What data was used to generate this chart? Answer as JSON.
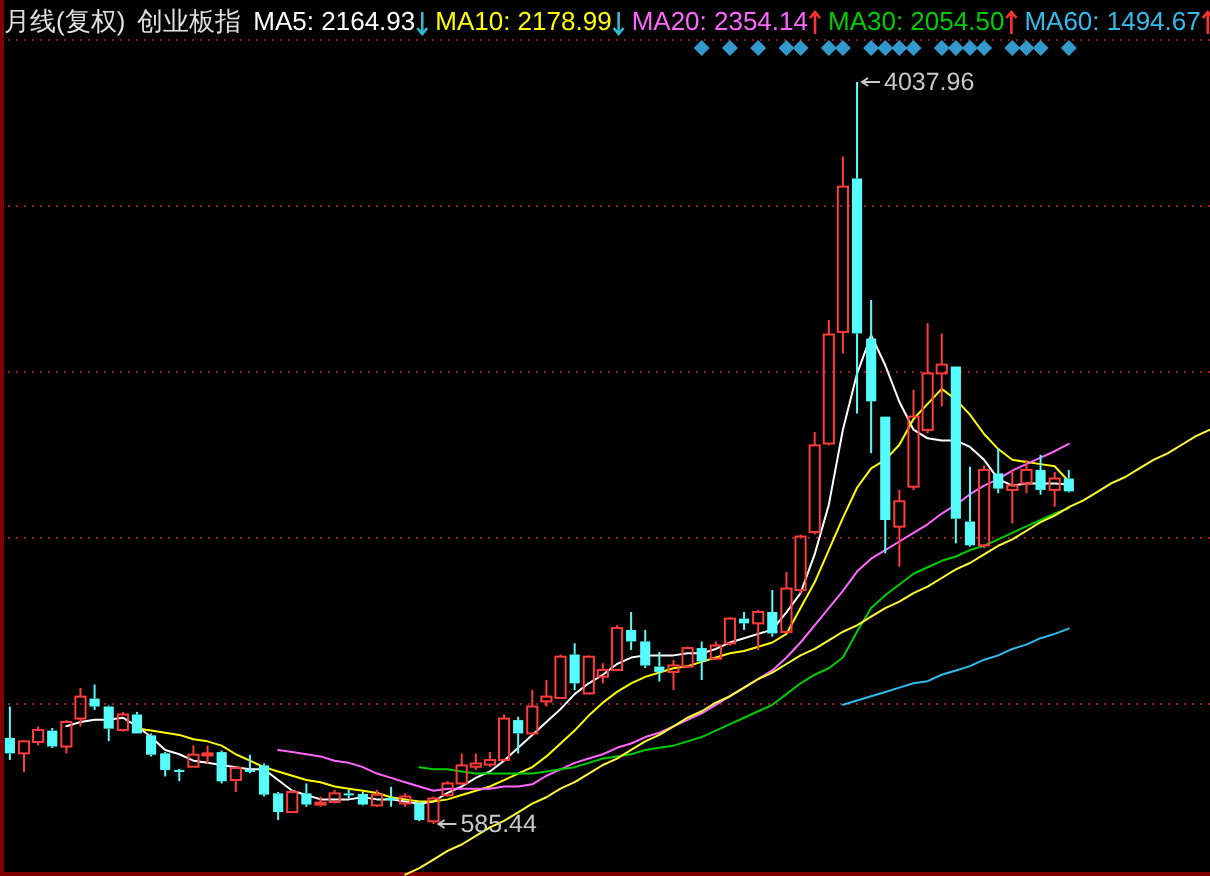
{
  "chart_data": {
    "type": "candlestick",
    "title": "月线(复权)",
    "subtitle": "创业板指",
    "categories": [
      null,
      null,
      null,
      null,
      null,
      null,
      null,
      null,
      null,
      null,
      null,
      null,
      null,
      null,
      null,
      null,
      null,
      null,
      null,
      null,
      null,
      null,
      null,
      null,
      null,
      null,
      null,
      null,
      null,
      null,
      null,
      null,
      null,
      null,
      null,
      null,
      null,
      null,
      null,
      null,
      null,
      null,
      null,
      null,
      null,
      null,
      null,
      null,
      null,
      null,
      null,
      null,
      null,
      null,
      null,
      null,
      null,
      null,
      null,
      null,
      null,
      null,
      null,
      null,
      null,
      null,
      null,
      null,
      null,
      null,
      null,
      null,
      null,
      null,
      null,
      null,
      null,
      null,
      null,
      null,
      null,
      null,
      null,
      null,
      null,
      null
    ],
    "ohlc": [
      [
        986,
        1132,
        883,
        914
      ],
      [
        914,
        970,
        827,
        970
      ],
      [
        967,
        1039,
        951,
        1023
      ],
      [
        1020,
        1032,
        939,
        946
      ],
      [
        946,
        1069,
        914,
        1060
      ],
      [
        1076,
        1218,
        1039,
        1178
      ],
      [
        1169,
        1234,
        1116,
        1132
      ],
      [
        1132,
        1137,
        970,
        1029
      ],
      [
        1023,
        1107,
        1016,
        1095
      ],
      [
        1095,
        1107,
        1007,
        1007
      ],
      [
        998,
        1007,
        899,
        908
      ],
      [
        914,
        920,
        806,
        837
      ],
      [
        837,
        843,
        784,
        830
      ],
      [
        852,
        951,
        852,
        908
      ],
      [
        908,
        951,
        867,
        914
      ],
      [
        920,
        927,
        774,
        784
      ],
      [
        790,
        852,
        734,
        846
      ],
      [
        837,
        908,
        821,
        830
      ],
      [
        858,
        867,
        713,
        722
      ],
      [
        728,
        734,
        604,
        641
      ],
      [
        641,
        744,
        641,
        734
      ],
      [
        728,
        774,
        666,
        676
      ],
      [
        676,
        713,
        666,
        685
      ],
      [
        688,
        744,
        681,
        728
      ],
      [
        728,
        744,
        704,
        719
      ],
      [
        725,
        734,
        672,
        676
      ],
      [
        672,
        744,
        666,
        722
      ],
      [
        706,
        759,
        666,
        700
      ],
      [
        681,
        728,
        666,
        713
      ],
      [
        681,
        691,
        598,
        604
      ],
      [
        598,
        713,
        585.44,
        704
      ],
      [
        719,
        784,
        713,
        774
      ],
      [
        774,
        914,
        769,
        858
      ],
      [
        852,
        914,
        837,
        867
      ],
      [
        862,
        920,
        852,
        883
      ],
      [
        883,
        1095,
        877,
        1076
      ],
      [
        1069,
        1085,
        914,
        1007
      ],
      [
        1007,
        1209,
        1001,
        1132
      ],
      [
        1156,
        1256,
        1132,
        1178
      ],
      [
        1172,
        1374,
        1169,
        1364
      ],
      [
        1374,
        1426,
        1209,
        1240
      ],
      [
        1193,
        1370,
        1188,
        1364
      ],
      [
        1271,
        1333,
        1240,
        1302
      ],
      [
        1302,
        1510,
        1296,
        1497
      ],
      [
        1488,
        1572,
        1395,
        1435
      ],
      [
        1435,
        1488,
        1311,
        1323
      ],
      [
        1318,
        1386,
        1249,
        1293
      ],
      [
        1293,
        1349,
        1209,
        1323
      ],
      [
        1318,
        1411,
        1311,
        1404
      ],
      [
        1404,
        1435,
        1256,
        1342
      ],
      [
        1355,
        1435,
        1349,
        1416
      ],
      [
        1426,
        1547,
        1416,
        1541
      ],
      [
        1541,
        1572,
        1488,
        1519
      ],
      [
        1519,
        1581,
        1395,
        1572
      ],
      [
        1572,
        1674,
        1457,
        1472
      ],
      [
        1479,
        1758,
        1472,
        1681
      ],
      [
        1674,
        1932,
        1658,
        1923
      ],
      [
        1944,
        2409,
        1932,
        2347
      ],
      [
        2356,
        2931,
        2347,
        2863
      ],
      [
        2875,
        3691,
        2775,
        3551
      ],
      [
        3589,
        4037.96,
        2496,
        2868
      ],
      [
        2844,
        3024,
        2310,
        2552
      ],
      [
        2481,
        2481,
        1845,
        2000
      ],
      [
        1969,
        2140,
        1783,
        2087
      ],
      [
        2155,
        2605,
        2140,
        2481
      ],
      [
        2419,
        2915,
        2403,
        2682
      ],
      [
        2682,
        2868,
        2528,
        2723
      ],
      [
        2714,
        2714,
        1891,
        2006
      ],
      [
        1993,
        2248,
        1876,
        1882
      ],
      [
        1882,
        2254,
        1870,
        2233
      ],
      [
        2217,
        2335,
        2124,
        2146
      ],
      [
        2140,
        2233,
        1984,
        2161
      ],
      [
        2170,
        2279,
        2124,
        2233
      ],
      [
        2233,
        2304,
        2118,
        2140
      ],
      [
        2140,
        2223,
        2062,
        2193
      ],
      [
        2193,
        2233,
        2128,
        2133
      ],
      null,
      null,
      null,
      null,
      null,
      null,
      null,
      null,
      null,
      null
    ],
    "series": [
      {
        "name": "MA5: 2164.93",
        "type": "line",
        "color": "#ffffff",
        "values": [
          null,
          null,
          null,
          null,
          1040,
          1060,
          1070,
          1070,
          1080,
          1040,
          990,
          930,
          910,
          880,
          870,
          860,
          850,
          840,
          840,
          790,
          740,
          720,
          700,
          700,
          700,
          710,
          700,
          700,
          690,
          680,
          690,
          730,
          760,
          800,
          830,
          880,
          940,
          1000,
          1060,
          1120,
          1190,
          1240,
          1280,
          1330,
          1360,
          1370,
          1370,
          1370,
          1380,
          1380,
          1400,
          1430,
          1450,
          1470,
          1490,
          1570,
          1660,
          1840,
          2070,
          2420,
          2680,
          2860,
          2720,
          2550,
          2420,
          2380,
          2370,
          2370,
          2340,
          2280,
          2190,
          2160,
          2170,
          2170,
          2170,
          2164.93,
          null,
          null,
          null,
          null,
          null,
          null,
          null,
          null,
          null,
          null
        ]
      },
      {
        "name": "MA10: 2178.99",
        "type": "line",
        "color": "#ffff00",
        "values": [
          null,
          null,
          null,
          null,
          null,
          null,
          null,
          null,
          null,
          1030,
          1020,
          1010,
          1000,
          980,
          970,
          950,
          910,
          880,
          850,
          830,
          810,
          790,
          780,
          760,
          750,
          740,
          730,
          710,
          700,
          690,
          690,
          700,
          720,
          740,
          760,
          790,
          820,
          850,
          900,
          960,
          1020,
          1090,
          1150,
          1200,
          1240,
          1270,
          1290,
          1310,
          1320,
          1340,
          1360,
          1380,
          1390,
          1410,
          1430,
          1470,
          1590,
          1710,
          1860,
          2010,
          2150,
          2240,
          2280,
          2350,
          2470,
          2540,
          2610,
          2560,
          2490,
          2400,
          2330,
          2280,
          2270,
          2260,
          2250,
          2178.99,
          null,
          null,
          null,
          null,
          null,
          null,
          null,
          null,
          null,
          null
        ]
      },
      {
        "name": "MA20: 2354.14",
        "type": "line",
        "color": "#ff66ff",
        "values": [
          null,
          null,
          null,
          null,
          null,
          null,
          null,
          null,
          null,
          null,
          null,
          null,
          null,
          null,
          null,
          null,
          null,
          null,
          null,
          930,
          920,
          910,
          900,
          880,
          870,
          850,
          820,
          800,
          780,
          760,
          740,
          750,
          750,
          750,
          750,
          760,
          760,
          770,
          810,
          840,
          870,
          890,
          910,
          940,
          960,
          990,
          1010,
          1040,
          1070,
          1100,
          1140,
          1180,
          1220,
          1260,
          1300,
          1360,
          1430,
          1510,
          1590,
          1670,
          1760,
          1820,
          1860,
          1900,
          1940,
          1980,
          2030,
          2070,
          2120,
          2160,
          2190,
          2230,
          2260,
          2290,
          2320,
          2354.14,
          null,
          null,
          null,
          null,
          null,
          null,
          null,
          null,
          null,
          null
        ]
      },
      {
        "name": "MA30: 2054.50",
        "type": "line",
        "color": "#00cc00",
        "values": [
          null,
          null,
          null,
          null,
          null,
          null,
          null,
          null,
          null,
          null,
          null,
          null,
          null,
          null,
          null,
          null,
          null,
          null,
          null,
          null,
          null,
          null,
          null,
          null,
          null,
          null,
          null,
          null,
          null,
          850,
          840,
          840,
          830,
          820,
          820,
          820,
          820,
          820,
          830,
          840,
          850,
          870,
          890,
          900,
          910,
          930,
          940,
          950,
          970,
          990,
          1020,
          1050,
          1080,
          1110,
          1140,
          1190,
          1240,
          1280,
          1310,
          1360,
          1480,
          1590,
          1650,
          1700,
          1750,
          1780,
          1810,
          1830,
          1860,
          1880,
          1910,
          1940,
          1970,
          2000,
          2030,
          2054.5,
          null,
          null,
          null,
          null,
          null,
          null,
          null,
          null,
          null,
          null
        ]
      },
      {
        "name": "MA60: 1494.67",
        "type": "line",
        "color": "#33bbee",
        "values": [
          null,
          null,
          null,
          null,
          null,
          null,
          null,
          null,
          null,
          null,
          null,
          null,
          null,
          null,
          null,
          null,
          null,
          null,
          null,
          null,
          null,
          null,
          null,
          null,
          null,
          null,
          null,
          null,
          null,
          null,
          null,
          null,
          null,
          null,
          null,
          null,
          null,
          null,
          null,
          null,
          null,
          null,
          null,
          null,
          null,
          null,
          null,
          null,
          null,
          null,
          null,
          null,
          null,
          null,
          null,
          null,
          null,
          null,
          null,
          1140,
          1160,
          1180,
          1200,
          1220,
          1240,
          1250,
          1280,
          1300,
          1320,
          1350,
          1370,
          1400,
          1420,
          1450,
          1470,
          1494.67,
          null,
          null,
          null,
          null,
          null,
          null,
          null,
          null,
          null,
          null
        ]
      },
      {
        "type": "line",
        "color": "#ffff33",
        "values": [
          null,
          null,
          null,
          null,
          null,
          null,
          null,
          null,
          null,
          null,
          null,
          null,
          null,
          null,
          null,
          null,
          null,
          null,
          null,
          null,
          null,
          null,
          null,
          null,
          null,
          null,
          null,
          null,
          350,
          380,
          420,
          460,
          490,
          530,
          570,
          600,
          640,
          680,
          710,
          750,
          780,
          820,
          860,
          890,
          930,
          970,
          1000,
          1040,
          1080,
          1110,
          1150,
          1180,
          1220,
          1260,
          1290,
          1330,
          1370,
          1400,
          1440,
          1480,
          1510,
          1550,
          1590,
          1620,
          1660,
          1690,
          1730,
          1770,
          1800,
          1840,
          1880,
          1910,
          1950,
          1990,
          2020,
          2060,
          2090,
          2130,
          2170,
          2200,
          2240,
          2280,
          2310,
          2350,
          2390,
          2420
        ]
      }
    ],
    "yticks": [
      {
        "value": 3461,
        "label": null
      },
      {
        "value": 2689,
        "label": null
      },
      {
        "value": 1916,
        "label": null
      },
      {
        "value": 1144,
        "label": null
      }
    ],
    "grid": "y",
    "legend": "top",
    "annotations": [
      "4037.96",
      "585.44"
    ]
  }
}
